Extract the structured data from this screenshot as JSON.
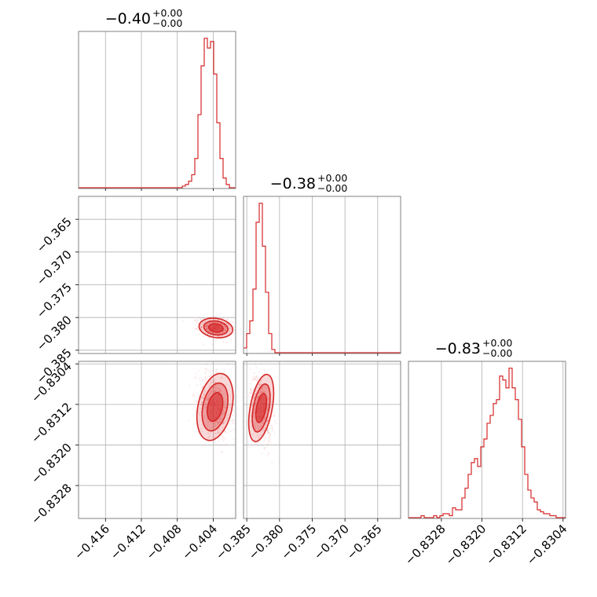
{
  "style": {
    "color": "#d62728"
  },
  "chart_data": {
    "type": "corner",
    "titles": [
      {
        "main": "−0.40",
        "sup": "+0.00",
        "sub": "−0.00"
      },
      {
        "main": "−0.38",
        "sup": "+0.00",
        "sub": "−0.00"
      },
      {
        "main": "−0.83",
        "sup": "+0.00",
        "sub": "−0.00"
      }
    ],
    "params": [
      {
        "range": [
          -0.419,
          -0.4015
        ],
        "ticks": [
          -0.416,
          -0.412,
          -0.408,
          -0.404
        ],
        "tick_labels": [
          "−0.416",
          "−0.412",
          "−0.408",
          "−0.404"
        ]
      },
      {
        "range": [
          -0.3855,
          -0.3615
        ],
        "ticks": [
          -0.385,
          -0.38,
          -0.375,
          -0.37,
          -0.365
        ],
        "tick_labels": [
          "−0.385",
          "−0.380",
          "−0.375",
          "−0.370",
          "−0.365"
        ]
      },
      {
        "range": [
          -0.83345,
          -0.83035
        ],
        "ticks": [
          -0.8328,
          -0.832,
          -0.8312,
          -0.8304
        ],
        "tick_labels": [
          "−0.8328",
          "−0.8320",
          "−0.8312",
          "−0.8304"
        ]
      }
    ],
    "histograms": [
      {
        "bin_start": -0.419,
        "bin_end": -0.4015,
        "counts": [
          0,
          0,
          0,
          0,
          0,
          0,
          0,
          0,
          0,
          0,
          0,
          0,
          0,
          0,
          0,
          0,
          0,
          0,
          0,
          0,
          0,
          0,
          0,
          0,
          0,
          0,
          0,
          0,
          0,
          0,
          0,
          0,
          0,
          1,
          2,
          4,
          8,
          18,
          45,
          75,
          92,
          86,
          90,
          70,
          40,
          18,
          6,
          2,
          0,
          0
        ]
      },
      {
        "bin_start": -0.3855,
        "bin_end": -0.3615,
        "counts": [
          3,
          12,
          20,
          40,
          82,
          94,
          67,
          38,
          12,
          2,
          0,
          0,
          0,
          0,
          0,
          0,
          0,
          0,
          0,
          0,
          0,
          0,
          0,
          0,
          0,
          0,
          0,
          0,
          0,
          0,
          0,
          0,
          0,
          0,
          0,
          0,
          0,
          0,
          0,
          0,
          0,
          0,
          0,
          0,
          0,
          0,
          0,
          0,
          0,
          0
        ]
      },
      {
        "bin_start": -0.83345,
        "bin_end": -0.83035,
        "counts": [
          0,
          0,
          0,
          0,
          1,
          0,
          0,
          0,
          1,
          0,
          1,
          2,
          2,
          1,
          5,
          4,
          4,
          10,
          15,
          22,
          28,
          30,
          26,
          36,
          40,
          48,
          52,
          58,
          60,
          72,
          70,
          66,
          76,
          66,
          60,
          50,
          36,
          22,
          14,
          10,
          8,
          4,
          3,
          2,
          2,
          1,
          1,
          0,
          0,
          0
        ]
      }
    ],
    "scatter_pairs": [
      {
        "x_param": 0,
        "y_param": 1,
        "center": [
          -0.4037,
          -0.3816
        ],
        "spread": [
          0.0009,
          0.0007
        ],
        "rho": -0.25
      },
      {
        "x_param": 0,
        "y_param": 2,
        "center": [
          -0.4038,
          -0.83125
        ],
        "spread": [
          0.0009,
          0.00032
        ],
        "rho": -0.35
      },
      {
        "x_param": 1,
        "y_param": 2,
        "center": [
          -0.3828,
          -0.83127
        ],
        "spread": [
          0.0008,
          0.00032
        ],
        "rho": -0.3
      }
    ]
  }
}
